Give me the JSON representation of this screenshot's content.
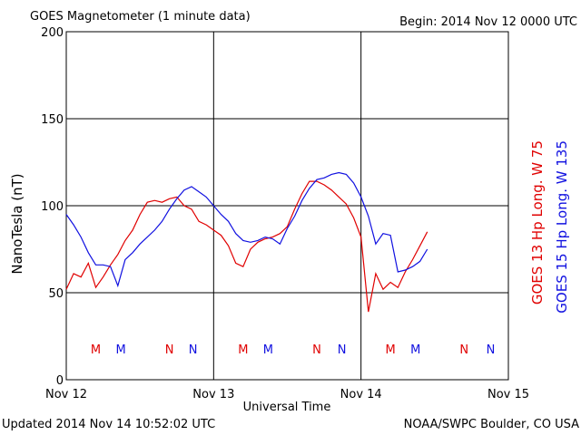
{
  "chart_data": {
    "type": "line",
    "title": "GOES Magnetometer (1 minute data)",
    "subtitle": "Begin:  2014 Nov 12 0000 UTC",
    "x_label": "Universal Time",
    "y_label": "NanoTesla (nT)",
    "footer_left": "Updated 2014 Nov 14 10:52:02 UTC",
    "footer_right": "NOAA/SWPC Boulder, CO USA",
    "xlim": [
      0,
      3
    ],
    "xticks": [
      {
        "value": 0,
        "label": "Nov 12"
      },
      {
        "value": 1,
        "label": "Nov 13"
      },
      {
        "value": 2,
        "label": "Nov 14"
      },
      {
        "value": 3,
        "label": "Nov 15"
      }
    ],
    "ylim": [
      0,
      200
    ],
    "yticks": [
      0,
      50,
      100,
      150,
      200
    ],
    "grid": true,
    "x": [
      0,
      0.05,
      0.1,
      0.15,
      0.2,
      0.25,
      0.3,
      0.35,
      0.4,
      0.45,
      0.5,
      0.55,
      0.6,
      0.65,
      0.7,
      0.75,
      0.8,
      0.85,
      0.9,
      0.95,
      1.0,
      1.05,
      1.1,
      1.15,
      1.2,
      1.25,
      1.3,
      1.35,
      1.4,
      1.45,
      1.5,
      1.55,
      1.6,
      1.65,
      1.7,
      1.75,
      1.8,
      1.85,
      1.9,
      1.95,
      2.0,
      2.05,
      2.1,
      2.15,
      2.2,
      2.25,
      2.3,
      2.35,
      2.4,
      2.45
    ],
    "series": [
      {
        "name": "GOES 13 Hp  Long. W 75",
        "color": "#e00000",
        "values": [
          52,
          61,
          59,
          67,
          53,
          59,
          66,
          72,
          80,
          86,
          95,
          102,
          103,
          102,
          104,
          105,
          100,
          98,
          91,
          89,
          86,
          83,
          77,
          67,
          65,
          75,
          79,
          81,
          82,
          84,
          88,
          98,
          107,
          114,
          114,
          112,
          109,
          105,
          101,
          93,
          82,
          39,
          61,
          52,
          56,
          53,
          62,
          69,
          77,
          85
        ]
      },
      {
        "name": "GOES 15 Hp  Long. W 135",
        "color": "#1010e0",
        "values": [
          95,
          89,
          82,
          73,
          66,
          66,
          65,
          54,
          69,
          73,
          78,
          82,
          86,
          91,
          98,
          104,
          109,
          111,
          108,
          105,
          100,
          95,
          91,
          84,
          80,
          79,
          80,
          82,
          81,
          78,
          87,
          94,
          103,
          110,
          115,
          116,
          118,
          119,
          118,
          113,
          105,
          94,
          78,
          84,
          83,
          62,
          63,
          65,
          68,
          75
        ]
      }
    ],
    "markers": [
      {
        "label": "M",
        "x": 0.2,
        "series": 0
      },
      {
        "label": "M",
        "x": 0.37,
        "series": 1
      },
      {
        "label": "N",
        "x": 0.7,
        "series": 0
      },
      {
        "label": "N",
        "x": 0.86,
        "series": 1
      },
      {
        "label": "M",
        "x": 1.2,
        "series": 0
      },
      {
        "label": "M",
        "x": 1.37,
        "series": 1
      },
      {
        "label": "N",
        "x": 1.7,
        "series": 0
      },
      {
        "label": "N",
        "x": 1.87,
        "series": 1
      },
      {
        "label": "M",
        "x": 2.2,
        "series": 0
      },
      {
        "label": "M",
        "x": 2.37,
        "series": 1
      },
      {
        "label": "N",
        "x": 2.7,
        "series": 0
      },
      {
        "label": "N",
        "x": 2.88,
        "series": 1
      }
    ]
  }
}
